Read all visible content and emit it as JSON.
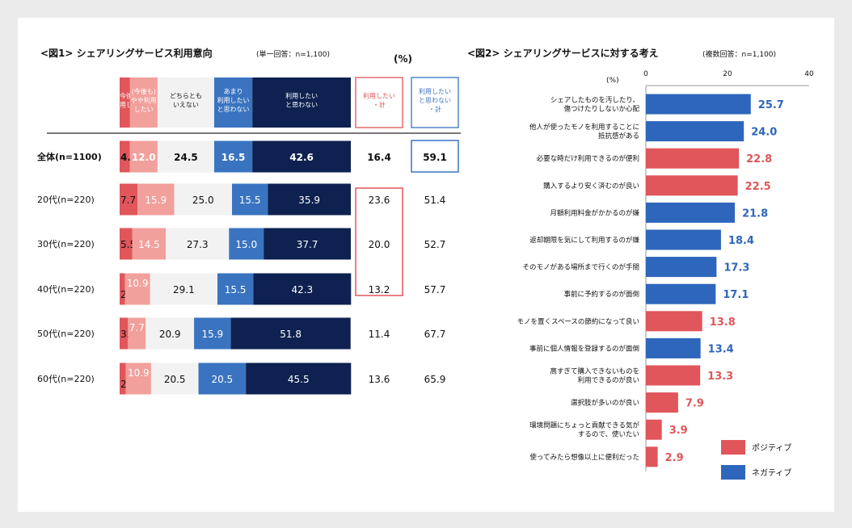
{
  "colors": {
    "cat1": "#e0565a",
    "cat2": "#f1a09c",
    "cat3": "#f2f2f2",
    "cat4": "#3a74c0",
    "cat5": "#0e2150",
    "positive": "#e0565a",
    "negative": "#2e66bb"
  },
  "chart1": {
    "title": "<図1> シェアリングサービス利用意向",
    "note": "(単一回答：n=1,100)",
    "unit": "(%)",
    "headers": [
      [
        "(今後も)",
        "利用したい"
      ],
      [
        "(今後も)",
        "やや利用",
        "したい"
      ],
      [
        "どちらとも",
        "いえない"
      ],
      [
        "あまり",
        "利用したい",
        "と思わない"
      ],
      [
        "利用したい",
        "と思わない"
      ]
    ],
    "sum_headers": [
      [
        "利用したい",
        "・計"
      ],
      [
        "利用したい",
        "と思わない",
        "・計"
      ]
    ],
    "chart_data": {
      "type": "bar",
      "stacked": true,
      "orientation": "horizontal",
      "categories": [
        "全体(n=1100)",
        "20代(n=220)",
        "30代(n=220)",
        "40代(n=220)",
        "50代(n=220)",
        "60代(n=220)"
      ],
      "series": [
        {
          "name": "(今後も)利用したい",
          "values": [
            4.4,
            7.7,
            5.5,
            2.3,
            3.6,
            2.7
          ]
        },
        {
          "name": "(今後も)やや利用したい",
          "values": [
            12.0,
            15.9,
            14.5,
            10.9,
            7.7,
            10.9
          ]
        },
        {
          "name": "どちらともいえない",
          "values": [
            24.5,
            25.0,
            27.3,
            29.1,
            20.9,
            20.5
          ]
        },
        {
          "name": "あまり利用したいと思わない",
          "values": [
            16.5,
            15.5,
            15.0,
            15.5,
            15.9,
            20.5
          ]
        },
        {
          "name": "利用したいと思わない",
          "values": [
            42.6,
            35.9,
            37.7,
            42.3,
            51.8,
            45.5
          ]
        }
      ],
      "sum_use": [
        16.4,
        23.6,
        20.0,
        13.2,
        11.4,
        13.6
      ],
      "sum_notuse": [
        59.1,
        51.4,
        52.7,
        57.7,
        67.7,
        65.9
      ],
      "xlim": [
        0,
        100
      ]
    }
  },
  "chart2": {
    "title": "<図2> シェアリングサービスに対する考え",
    "note": "(複数回答：n=1,100)",
    "unit": "(%)",
    "legend": {
      "positive": "ポジティブ",
      "negative": "ネガティブ"
    },
    "chart_data": {
      "type": "bar",
      "orientation": "horizontal",
      "xlim": [
        0,
        40
      ],
      "ticks": [
        0,
        20,
        40
      ],
      "items": [
        {
          "label": [
            "シェアしたものを汚したり、",
            "傷つけたりしないか心配"
          ],
          "value": 25.7,
          "type": "negative"
        },
        {
          "label": [
            "他人が使ったモノを利用することに",
            "抵抗感がある"
          ],
          "value": 24.0,
          "type": "negative"
        },
        {
          "label": [
            "必要な時だけ利用できるのが便利"
          ],
          "value": 22.8,
          "type": "positive"
        },
        {
          "label": [
            "購入するより安く済むのが良い"
          ],
          "value": 22.5,
          "type": "positive"
        },
        {
          "label": [
            "月額利用料金がかかるのが嫌"
          ],
          "value": 21.8,
          "type": "negative"
        },
        {
          "label": [
            "返却期限を気にして利用するのが嫌"
          ],
          "value": 18.4,
          "type": "negative"
        },
        {
          "label": [
            "そのモノがある場所まで行くのが手間"
          ],
          "value": 17.3,
          "type": "negative"
        },
        {
          "label": [
            "事前に予約するのが面倒"
          ],
          "value": 17.1,
          "type": "negative"
        },
        {
          "label": [
            "モノを置くスペースの節約になって良い"
          ],
          "value": 13.8,
          "type": "positive"
        },
        {
          "label": [
            "事前に個人情報を登録するのが面倒"
          ],
          "value": 13.4,
          "type": "negative"
        },
        {
          "label": [
            "高すぎて購入できないものを",
            "利用できるのが良い"
          ],
          "value": 13.3,
          "type": "positive"
        },
        {
          "label": [
            "選択肢が多いのが良い"
          ],
          "value": 7.9,
          "type": "positive"
        },
        {
          "label": [
            "環境問題にちょっと貢献できる気が",
            "するので、使いたい"
          ],
          "value": 3.9,
          "type": "positive"
        },
        {
          "label": [
            "使ってみたら想像以上に便利だった"
          ],
          "value": 2.9,
          "type": "positive"
        }
      ]
    }
  }
}
